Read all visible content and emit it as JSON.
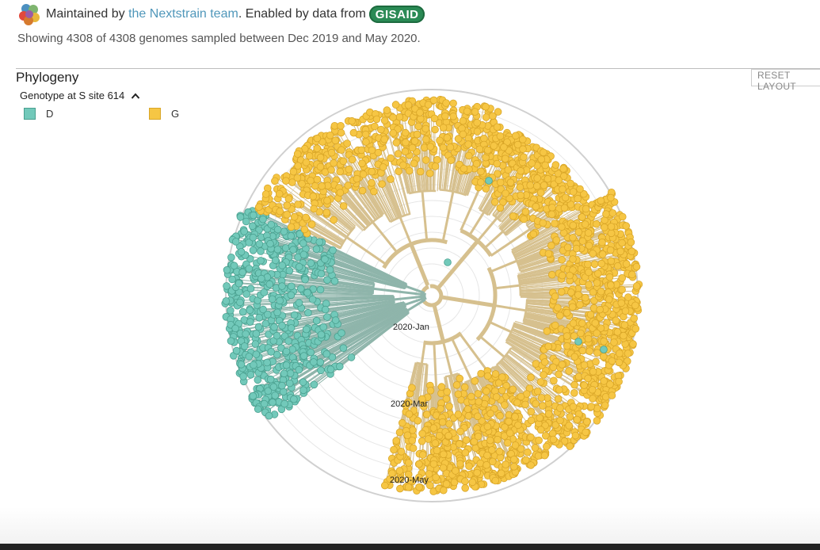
{
  "header": {
    "maintained_prefix": "Maintained by",
    "team_link": "the Nextstrain team",
    "enabled_text": ". Enabled by data from",
    "gisaid_badge": "GISAID"
  },
  "summary": "Showing 4308 of 4308 genomes sampled between Dec 2019 and May 2020.",
  "panel": {
    "title": "Phylogeny",
    "reset_label": "RESET LAYOUT"
  },
  "legend": {
    "title": "Genotype at S site 614",
    "items": [
      {
        "label": "D",
        "color": "#72C9BA"
      },
      {
        "label": "G",
        "color": "#F6C644"
      }
    ]
  },
  "tree": {
    "axis_labels": [
      "2020-Jan",
      "2020-Mar",
      "2020-May"
    ],
    "branch_colors": {
      "D": "#8fb5ab",
      "G": "#d6c08e"
    },
    "tip_colors": {
      "D": "#72C9BA",
      "G": "#F6C644"
    },
    "tip_stroke": {
      "D": "#4aa08f",
      "G": "#d9a628"
    }
  }
}
